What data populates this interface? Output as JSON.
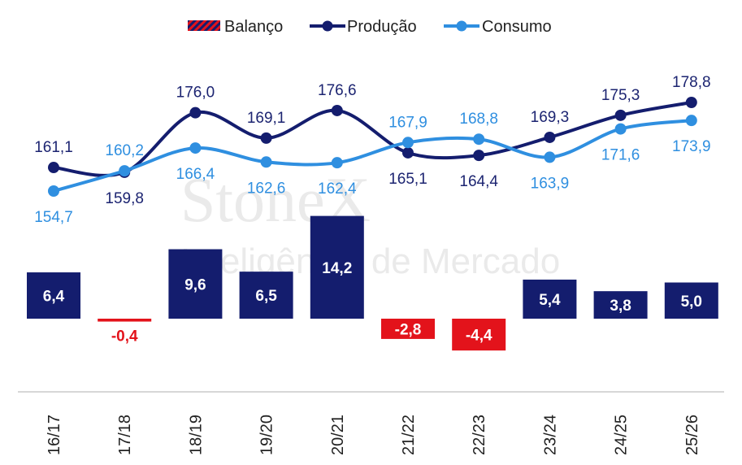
{
  "watermark": {
    "brand": "StoneX",
    "tagline": "Inteligência de Mercado"
  },
  "chart_data": {
    "type": "bar",
    "categories": [
      "16/17",
      "17/18",
      "18/19",
      "19/20",
      "20/21",
      "21/22",
      "22/23",
      "23/24",
      "24/25",
      "25/26"
    ],
    "legend": {
      "position": "top-center"
    },
    "grid": false,
    "series": [
      {
        "name": "Balanço",
        "type": "bar",
        "color_positive": "#141d6e",
        "color_negative": "#e3131b",
        "values": [
          6.4,
          -0.4,
          9.6,
          6.5,
          14.2,
          -2.8,
          -4.4,
          5.4,
          3.8,
          5.0
        ],
        "labels": [
          "6,4",
          "-0,4",
          "9,6",
          "6,5",
          "14,2",
          "-2,8",
          "-4,4",
          "5,4",
          "3,8",
          "5,0"
        ]
      },
      {
        "name": "Produção",
        "type": "line",
        "color": "#141d6e",
        "values": [
          161.1,
          159.8,
          176.0,
          169.1,
          176.6,
          165.1,
          164.4,
          169.3,
          175.3,
          178.8
        ],
        "labels": [
          "161,1",
          "159,8",
          "176,0",
          "169,1",
          "176,6",
          "165,1",
          "164,4",
          "169,3",
          "175,3",
          "178,8"
        ]
      },
      {
        "name": "Consumo",
        "type": "line",
        "color": "#2f8fe0",
        "values": [
          154.7,
          160.2,
          166.4,
          162.6,
          162.4,
          167.9,
          168.8,
          163.9,
          171.6,
          173.9
        ],
        "labels": [
          "154,7",
          "160,2",
          "166,4",
          "162,6",
          "162,4",
          "167,9",
          "168,8",
          "163,9",
          "171,6",
          "173,9"
        ]
      }
    ]
  }
}
